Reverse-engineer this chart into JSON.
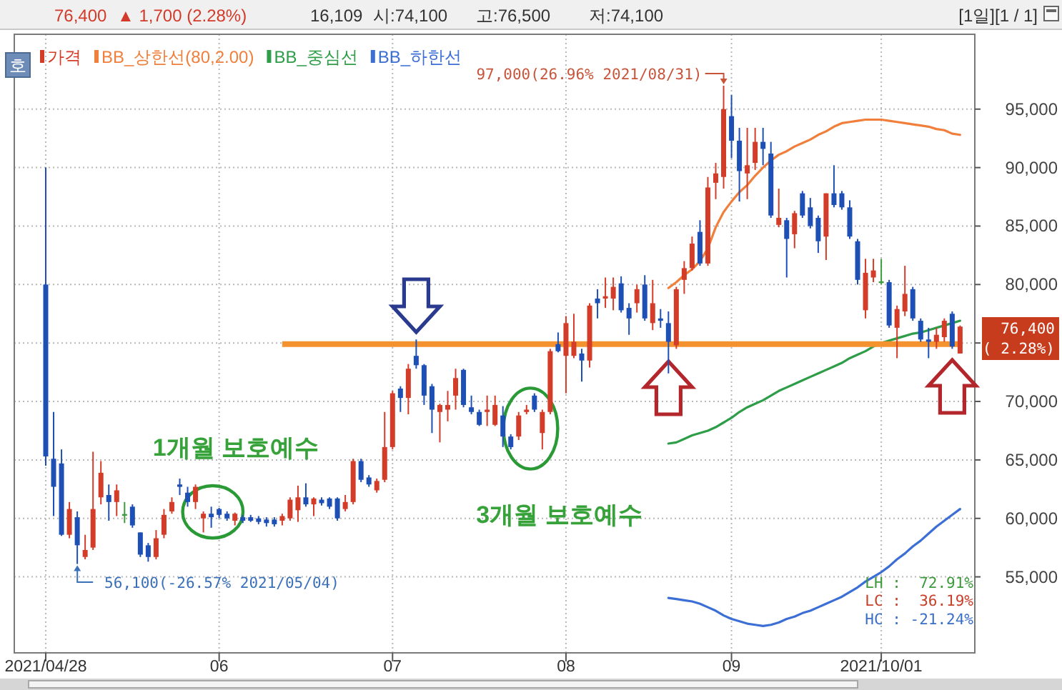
{
  "chart_data": {
    "type": "candlestick",
    "categories": [
      "2021/04/28",
      null,
      null,
      null,
      null,
      null,
      null,
      null,
      null,
      null,
      null,
      null,
      null,
      null,
      null,
      null,
      null,
      null,
      null,
      null,
      null,
      null,
      "06",
      null,
      null,
      null,
      null,
      null,
      null,
      null,
      null,
      null,
      null,
      null,
      null,
      null,
      null,
      null,
      null,
      null,
      null,
      null,
      null,
      null,
      "07",
      null,
      null,
      null,
      null,
      null,
      null,
      null,
      null,
      null,
      null,
      null,
      null,
      null,
      null,
      null,
      null,
      null,
      null,
      null,
      null,
      null,
      "08",
      null,
      null,
      null,
      null,
      null,
      null,
      null,
      null,
      null,
      null,
      null,
      null,
      null,
      null,
      null,
      null,
      null,
      null,
      null,
      null,
      "09",
      null,
      null,
      null,
      null,
      null,
      null,
      null,
      null,
      null,
      null,
      null,
      null,
      null,
      null,
      null,
      null,
      null,
      null,
      "2021/10/01",
      null,
      null,
      null,
      null,
      null,
      null,
      null,
      null,
      null,
      null
    ],
    "series": [
      {
        "name": "가격",
        "color": "#d33c28",
        "ohlc": [
          [
            80000,
            90000,
            64500,
            65300
          ],
          [
            65100,
            69100,
            60200,
            62700
          ],
          [
            64700,
            65900,
            58500,
            58600
          ],
          [
            58600,
            61400,
            58300,
            60800
          ],
          [
            60100,
            60600,
            56100,
            57700
          ],
          [
            56700,
            58600,
            56500,
            57300
          ],
          [
            57500,
            65700,
            57300,
            60800
          ],
          [
            61800,
            64900,
            61200,
            63900
          ],
          [
            62000,
            62900,
            59800,
            61400
          ],
          [
            61400,
            62900,
            60200,
            62400
          ],
          [
            60300,
            61400,
            59600,
            60300
          ],
          [
            61000,
            61200,
            59200,
            59400
          ],
          [
            58800,
            58800,
            56700,
            56900
          ],
          [
            57700,
            57900,
            56300,
            56700
          ],
          [
            56700,
            59000,
            56500,
            58300
          ],
          [
            58600,
            60800,
            58300,
            60300
          ],
          [
            60600,
            61800,
            60400,
            61400
          ],
          [
            62900,
            63400,
            62000,
            62700
          ],
          [
            62200,
            62700,
            61000,
            61400
          ],
          [
            61400,
            62900,
            60800,
            62700
          ],
          [
            60000,
            60600,
            58800,
            60400
          ],
          [
            60400,
            61000,
            59200,
            60100
          ],
          [
            60800,
            60900,
            60000,
            60300
          ],
          [
            60400,
            60600,
            59800,
            60000
          ],
          [
            59800,
            60500,
            59400,
            60400
          ],
          [
            60100,
            60300,
            59600,
            59800
          ],
          [
            60100,
            60300,
            59700,
            59800
          ],
          [
            60000,
            60200,
            59500,
            59700
          ],
          [
            59900,
            60100,
            59300,
            59600
          ],
          [
            59900,
            60100,
            59300,
            59500
          ],
          [
            59800,
            60400,
            59400,
            60200
          ],
          [
            60000,
            61800,
            59800,
            61600
          ],
          [
            60700,
            62800,
            59700,
            61800
          ],
          [
            61800,
            63000,
            61000,
            61200
          ],
          [
            61200,
            61800,
            60200,
            61700
          ],
          [
            61600,
            61800,
            61100,
            61300
          ],
          [
            61700,
            61800,
            60800,
            61000
          ],
          [
            61700,
            61800,
            59800,
            60000
          ],
          [
            60800,
            62000,
            60600,
            61400
          ],
          [
            61400,
            65100,
            61200,
            64900
          ],
          [
            64900,
            65100,
            63100,
            63300
          ],
          [
            63500,
            63700,
            62700,
            62900
          ],
          [
            62400,
            63400,
            62200,
            63200
          ],
          [
            63300,
            69100,
            63100,
            66100
          ],
          [
            66100,
            70900,
            65900,
            70700
          ],
          [
            71100,
            71300,
            69100,
            70300
          ],
          [
            70300,
            73200,
            68900,
            72800
          ],
          [
            73900,
            75300,
            72800,
            73100
          ],
          [
            73100,
            73200,
            69700,
            70500
          ],
          [
            71300,
            71500,
            67300,
            69300
          ],
          [
            69100,
            69800,
            66500,
            69700
          ],
          [
            69300,
            70900,
            68300,
            69700
          ],
          [
            70500,
            72800,
            69300,
            72000
          ],
          [
            72700,
            72800,
            69500,
            69700
          ],
          [
            69500,
            70500,
            68900,
            69100
          ],
          [
            69100,
            69300,
            67900,
            68000
          ],
          [
            69100,
            70500,
            67900,
            69300
          ],
          [
            68000,
            70500,
            67900,
            69700
          ],
          [
            68800,
            69600,
            66100,
            67000
          ],
          [
            67000,
            67200,
            65900,
            66100
          ],
          [
            67000,
            69100,
            66700,
            68800
          ],
          [
            69100,
            69700,
            68900,
            69300
          ],
          [
            70500,
            70700,
            69100,
            69300
          ],
          [
            67300,
            69300,
            65900,
            69100
          ],
          [
            69100,
            74500,
            68900,
            74300
          ],
          [
            74900,
            75900,
            74200,
            74300
          ],
          [
            73900,
            77300,
            70700,
            76700
          ],
          [
            73900,
            77500,
            73700,
            75100
          ],
          [
            74100,
            74500,
            71700,
            73500
          ],
          [
            73500,
            78400,
            72900,
            78200
          ],
          [
            78800,
            79600,
            77100,
            78400
          ],
          [
            78800,
            80600,
            78000,
            79000
          ],
          [
            78800,
            80600,
            77800,
            79800
          ],
          [
            80100,
            80700,
            77600,
            77800
          ],
          [
            78000,
            78400,
            75700,
            77100
          ],
          [
            78400,
            80000,
            77600,
            79600
          ],
          [
            80000,
            80800,
            76900,
            77100
          ],
          [
            76700,
            80400,
            76100,
            78400
          ],
          [
            77100,
            77900,
            76300,
            76900
          ],
          [
            76700,
            77700,
            72400,
            75100
          ],
          [
            74800,
            79800,
            74500,
            79600
          ],
          [
            80400,
            82000,
            79200,
            81400
          ],
          [
            81400,
            84100,
            81200,
            83500
          ],
          [
            84500,
            85500,
            81600,
            81800
          ],
          [
            81800,
            89200,
            81600,
            88300
          ],
          [
            88700,
            90400,
            87300,
            89500
          ],
          [
            89200,
            97000,
            88200,
            95000
          ],
          [
            94400,
            96200,
            90800,
            92300
          ],
          [
            92300,
            93400,
            87100,
            89700
          ],
          [
            89500,
            93400,
            87300,
            90200
          ],
          [
            90400,
            93400,
            89800,
            92200
          ],
          [
            92200,
            93400,
            90200,
            91600
          ],
          [
            91200,
            92200,
            85700,
            85900
          ],
          [
            85100,
            88200,
            84900,
            85700
          ],
          [
            85500,
            85700,
            80600,
            83900
          ],
          [
            84300,
            86300,
            83100,
            86100
          ],
          [
            87800,
            88000,
            85700,
            85900
          ],
          [
            86600,
            87400,
            84800,
            85000
          ],
          [
            85700,
            85900,
            82700,
            83700
          ],
          [
            84100,
            87800,
            82100,
            87800
          ],
          [
            87800,
            90200,
            86600,
            86800
          ],
          [
            87800,
            88000,
            86400,
            86600
          ],
          [
            86600,
            87200,
            83900,
            84100
          ],
          [
            83700,
            83900,
            80000,
            80400
          ],
          [
            77800,
            82200,
            77100,
            81000
          ],
          [
            80600,
            82200,
            80200,
            81200
          ],
          [
            80200,
            82200,
            80000,
            80200
          ],
          [
            80200,
            80400,
            76300,
            76500
          ],
          [
            76300,
            78200,
            73700,
            77900
          ],
          [
            77700,
            81600,
            77300,
            79200
          ],
          [
            79600,
            79800,
            76900,
            77100
          ],
          [
            76900,
            77100,
            75100,
            75300
          ],
          [
            75300,
            76300,
            73700,
            75100
          ],
          [
            75100,
            76300,
            74500,
            75700
          ],
          [
            75500,
            77100,
            75100,
            76900
          ],
          [
            77500,
            77700,
            74500,
            74700
          ],
          [
            74100,
            76500,
            74100,
            76400
          ]
        ],
        "colors": [
          "#1e4fb4",
          "#1e4fb4",
          "#1e4fb4",
          "#d33c28",
          "#1e4fb4",
          "#d33c28",
          "#d33c28",
          "#d33c28",
          "#1e4fb4",
          "#d33c28",
          "#3f9b3f",
          "#1e4fb4",
          "#1e4fb4",
          "#1e4fb4",
          "#d33c28",
          "#d33c28",
          "#d33c28",
          "#1e4fb4",
          "#1e4fb4",
          "#d33c28",
          "#d33c28",
          "#1e4fb4",
          "#1e4fb4",
          "#1e4fb4",
          "#d33c28",
          "#1e4fb4",
          "#1e4fb4",
          "#1e4fb4",
          "#1e4fb4",
          "#1e4fb4",
          "#d33c28",
          "#d33c28",
          "#d33c28",
          "#1e4fb4",
          "#d33c28",
          "#1e4fb4",
          "#1e4fb4",
          "#1e4fb4",
          "#d33c28",
          "#d33c28",
          "#1e4fb4",
          "#1e4fb4",
          "#d33c28",
          "#d33c28",
          "#d33c28",
          "#1e4fb4",
          "#d33c28",
          "#1e4fb4",
          "#1e4fb4",
          "#1e4fb4",
          "#d33c28",
          "#d33c28",
          "#d33c28",
          "#1e4fb4",
          "#1e4fb4",
          "#1e4fb4",
          "#d33c28",
          "#d33c28",
          "#1e4fb4",
          "#1e4fb4",
          "#d33c28",
          "#d33c28",
          "#1e4fb4",
          "#d33c28",
          "#d33c28",
          "#1e4fb4",
          "#d33c28",
          "#d33c28",
          "#1e4fb4",
          "#d33c28",
          "#1e4fb4",
          "#d33c28",
          "#d33c28",
          "#1e4fb4",
          "#1e4fb4",
          "#d33c28",
          "#1e4fb4",
          "#d33c28",
          "#1e4fb4",
          "#1e4fb4",
          "#d33c28",
          "#d33c28",
          "#d33c28",
          "#1e4fb4",
          "#d33c28",
          "#d33c28",
          "#d33c28",
          "#1e4fb4",
          "#1e4fb4",
          "#d33c28",
          "#d33c28",
          "#1e4fb4",
          "#1e4fb4",
          "#d33c28",
          "#1e4fb4",
          "#d33c28",
          "#1e4fb4",
          "#1e4fb4",
          "#1e4fb4",
          "#d33c28",
          "#1e4fb4",
          "#1e4fb4",
          "#1e4fb4",
          "#1e4fb4",
          "#d33c28",
          "#d33c28",
          "#3f9b3f",
          "#1e4fb4",
          "#d33c28",
          "#d33c28",
          "#1e4fb4",
          "#1e4fb4",
          "#1e4fb4",
          "#d33c28",
          "#d33c28",
          "#1e4fb4",
          "#d33c28"
        ]
      },
      {
        "name": "BB_상한선(80,2.00)",
        "type": "line",
        "color": "#f07f3c",
        "values": [
          null,
          null,
          null,
          null,
          null,
          null,
          null,
          null,
          null,
          null,
          null,
          null,
          null,
          null,
          null,
          null,
          null,
          null,
          null,
          null,
          null,
          null,
          null,
          null,
          null,
          null,
          null,
          null,
          null,
          null,
          null,
          null,
          null,
          null,
          null,
          null,
          null,
          null,
          null,
          null,
          null,
          null,
          null,
          null,
          null,
          null,
          null,
          null,
          null,
          null,
          null,
          null,
          null,
          null,
          null,
          null,
          null,
          null,
          null,
          null,
          null,
          null,
          null,
          null,
          null,
          null,
          null,
          null,
          null,
          null,
          null,
          null,
          null,
          null,
          null,
          null,
          null,
          null,
          null,
          79700,
          80200,
          80800,
          81300,
          82000,
          83100,
          84900,
          86200,
          87100,
          87900,
          88500,
          89300,
          90000,
          90600,
          91100,
          91400,
          91800,
          92100,
          92400,
          92800,
          93100,
          93500,
          93800,
          93900,
          94000,
          94100,
          94100,
          94100,
          94000,
          93900,
          93800,
          93700,
          93600,
          93500,
          93300,
          93200,
          92900,
          92800
        ]
      },
      {
        "name": "BB_중심선",
        "type": "line",
        "color": "#2e9d48",
        "values": [
          null,
          null,
          null,
          null,
          null,
          null,
          null,
          null,
          null,
          null,
          null,
          null,
          null,
          null,
          null,
          null,
          null,
          null,
          null,
          null,
          null,
          null,
          null,
          null,
          null,
          null,
          null,
          null,
          null,
          null,
          null,
          null,
          null,
          null,
          null,
          null,
          null,
          null,
          null,
          null,
          null,
          null,
          null,
          null,
          null,
          null,
          null,
          null,
          null,
          null,
          null,
          null,
          null,
          null,
          null,
          null,
          null,
          null,
          null,
          null,
          null,
          null,
          null,
          null,
          null,
          null,
          null,
          null,
          null,
          null,
          null,
          null,
          null,
          null,
          null,
          null,
          null,
          null,
          null,
          66400,
          66500,
          66800,
          67100,
          67300,
          67500,
          67800,
          68200,
          68600,
          69100,
          69500,
          69800,
          70100,
          70500,
          70900,
          71200,
          71500,
          71800,
          72100,
          72400,
          72700,
          73000,
          73300,
          73700,
          74000,
          74300,
          74700,
          75000,
          75200,
          75400,
          75600,
          75800,
          75900,
          76100,
          76300,
          76500,
          76700,
          76900
        ]
      },
      {
        "name": "BB_하한선",
        "type": "line",
        "color": "#3b6fd6",
        "values": [
          null,
          null,
          null,
          null,
          null,
          null,
          null,
          null,
          null,
          null,
          null,
          null,
          null,
          null,
          null,
          null,
          null,
          null,
          null,
          null,
          null,
          null,
          null,
          null,
          null,
          null,
          null,
          null,
          null,
          null,
          null,
          null,
          null,
          null,
          null,
          null,
          null,
          null,
          null,
          null,
          null,
          null,
          null,
          null,
          null,
          null,
          null,
          null,
          null,
          null,
          null,
          null,
          null,
          null,
          null,
          null,
          null,
          null,
          null,
          null,
          null,
          null,
          null,
          null,
          null,
          null,
          null,
          null,
          null,
          null,
          null,
          null,
          null,
          null,
          null,
          null,
          null,
          null,
          null,
          53200,
          53100,
          53000,
          52900,
          52700,
          52400,
          52100,
          51700,
          51400,
          51200,
          51000,
          50900,
          50800,
          50900,
          51100,
          51400,
          51600,
          51900,
          52100,
          52400,
          52700,
          53000,
          53300,
          53700,
          54100,
          54600,
          55000,
          55400,
          55900,
          56500,
          57000,
          57600,
          58100,
          58700,
          59300,
          59800,
          60300,
          60800
        ]
      },
      {
        "type": "line",
        "color": "#f3922f",
        "values": [
          null,
          null,
          null,
          null,
          null,
          null,
          null,
          null,
          null,
          null,
          null,
          null,
          null,
          null,
          null,
          null,
          null,
          null,
          null,
          null,
          null,
          null,
          null,
          null,
          null,
          null,
          null,
          null,
          null,
          null,
          74900,
          74900,
          74900,
          74900,
          74900,
          74900,
          74900,
          74900,
          74900,
          74900,
          74900,
          74900,
          74900,
          74900,
          74900,
          74900,
          74900,
          74900,
          74900,
          74900,
          74900,
          74900,
          74900,
          74900,
          74900,
          74900,
          74900,
          74900,
          74900,
          74900,
          74900,
          74900,
          74900,
          74900,
          74900,
          74900,
          74900,
          74900,
          74900,
          74900,
          74900,
          74900,
          74900,
          74900,
          74900,
          74900,
          74900,
          74900,
          74900,
          74900,
          74900,
          74900,
          74900,
          74900,
          74900,
          74900,
          74900,
          74900,
          74900,
          74900,
          74900,
          74900,
          74900,
          74900,
          74900,
          74900,
          74900,
          74900,
          74900,
          74900,
          74900,
          74900,
          74900,
          74900,
          74900,
          74900,
          74900,
          74900,
          74900,
          74900,
          74900,
          74900,
          74900,
          74900,
          74900,
          74900,
          74900
        ]
      }
    ],
    "ylim": [
      48500,
      101400
    ],
    "yticks": [
      {
        "value": 55000,
        "label": "55,000"
      },
      {
        "value": 60000,
        "label": "60,000"
      },
      {
        "value": 65000,
        "label": "65,000"
      },
      {
        "value": 70000,
        "label": "70,000"
      },
      {
        "value": 75000,
        "label": null
      },
      {
        "value": 80000,
        "label": "80,000"
      },
      {
        "value": 85000,
        "label": "85,000"
      },
      {
        "value": 90000,
        "label": "90,000"
      },
      {
        "value": 95000,
        "label": "95,000"
      }
    ],
    "grid": true,
    "legend": "top left",
    "annotations": [
      "76,400",
      "▲ 1,700 (2.28%)",
      "16,109",
      "시:74,100",
      "고:76,500",
      "저:74,100",
      "[1일][1 / 1]",
      "호",
      "97,000(26.96% 2021/08/31)",
      "56,100(-26.57% 2021/05/04)",
      "1개월 보호예수",
      "3개월 보호예수",
      "LH :  72.91%",
      "LC :  36.19%",
      "HC : -21.24%",
      "76,400",
      "( 2.28%)"
    ]
  }
}
